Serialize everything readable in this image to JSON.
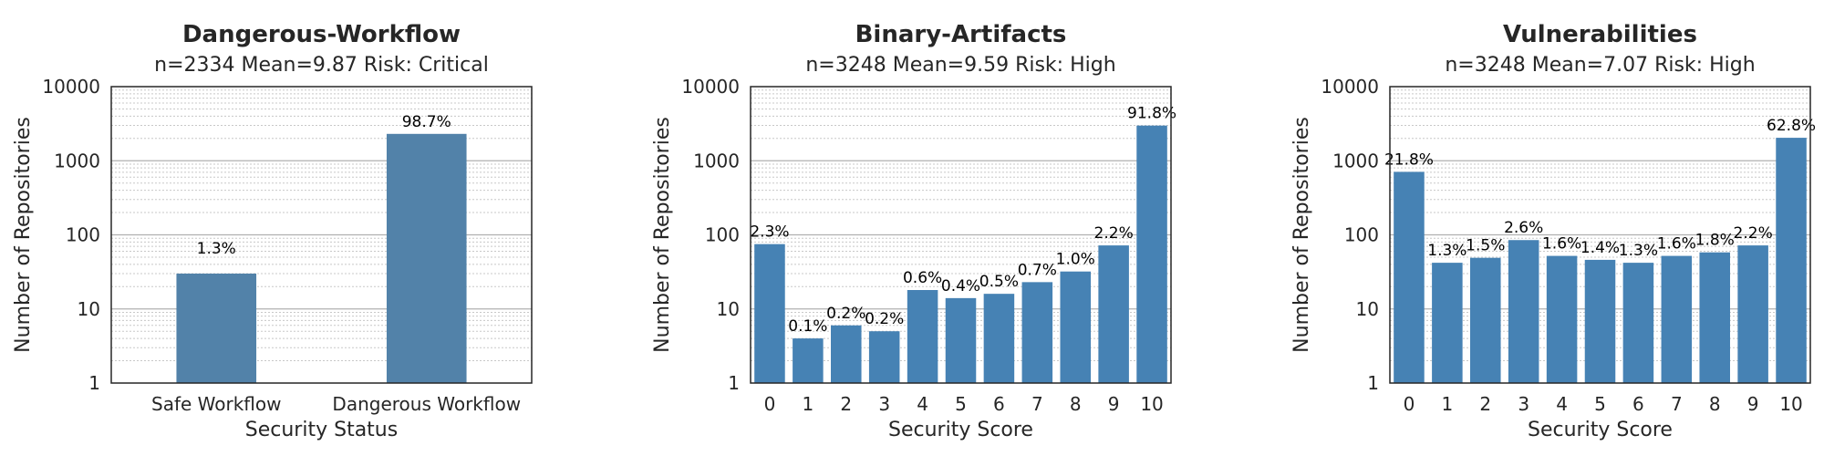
{
  "colors": {
    "bar_first": "#5282a9",
    "bar": "#4682b4",
    "grid_major": "#b0b0b0",
    "grid_minor": "#c8c8c8"
  },
  "chart_data": [
    {
      "type": "bar",
      "title": "Dangerous-Workflow",
      "subtitle": "n=2334    Mean=9.87    Risk: Critical",
      "xlabel": "Security Status",
      "ylabel": "Number of Repositories",
      "yscale": "log",
      "ylim": [
        1,
        10000
      ],
      "yticks": [
        "1",
        "10",
        "100",
        "1000",
        "10000"
      ],
      "grid": true,
      "categories": [
        "Safe Workflow",
        "Dangerous Workflow"
      ],
      "values": [
        30,
        2304
      ],
      "labels": [
        "1.3%",
        "98.7%"
      ]
    },
    {
      "type": "bar",
      "title": "Binary-Artifacts",
      "subtitle": "n=3248    Mean=9.59    Risk: High",
      "xlabel": "Security Score",
      "ylabel": "Number of Repositories",
      "yscale": "log",
      "ylim": [
        1,
        10000
      ],
      "yticks": [
        "1",
        "10",
        "100",
        "1000",
        "10000"
      ],
      "grid": true,
      "categories": [
        "0",
        "1",
        "2",
        "3",
        "4",
        "5",
        "6",
        "7",
        "8",
        "9",
        "10"
      ],
      "values": [
        75,
        4,
        6,
        5,
        18,
        14,
        16,
        23,
        32,
        72,
        2982
      ],
      "labels": [
        "2.3%",
        "0.1%",
        "0.2%",
        "0.2%",
        "0.6%",
        "0.4%",
        "0.5%",
        "0.7%",
        "1.0%",
        "2.2%",
        "91.8%"
      ]
    },
    {
      "type": "bar",
      "title": "Vulnerabilities",
      "subtitle": "n=3248    Mean=7.07    Risk: High",
      "xlabel": "Security Score",
      "ylabel": "Number of Repositories",
      "yscale": "log",
      "ylim": [
        1,
        10000
      ],
      "yticks": [
        "1",
        "10",
        "100",
        "1000",
        "10000"
      ],
      "grid": true,
      "categories": [
        "0",
        "1",
        "2",
        "3",
        "4",
        "5",
        "6",
        "7",
        "8",
        "9",
        "10"
      ],
      "values": [
        708,
        42,
        49,
        85,
        52,
        46,
        42,
        52,
        58,
        72,
        2040
      ],
      "labels": [
        "21.8%",
        "1.3%",
        "1.5%",
        "2.6%",
        "1.6%",
        "1.4%",
        "1.3%",
        "1.6%",
        "1.8%",
        "2.2%",
        "62.8%"
      ]
    }
  ]
}
